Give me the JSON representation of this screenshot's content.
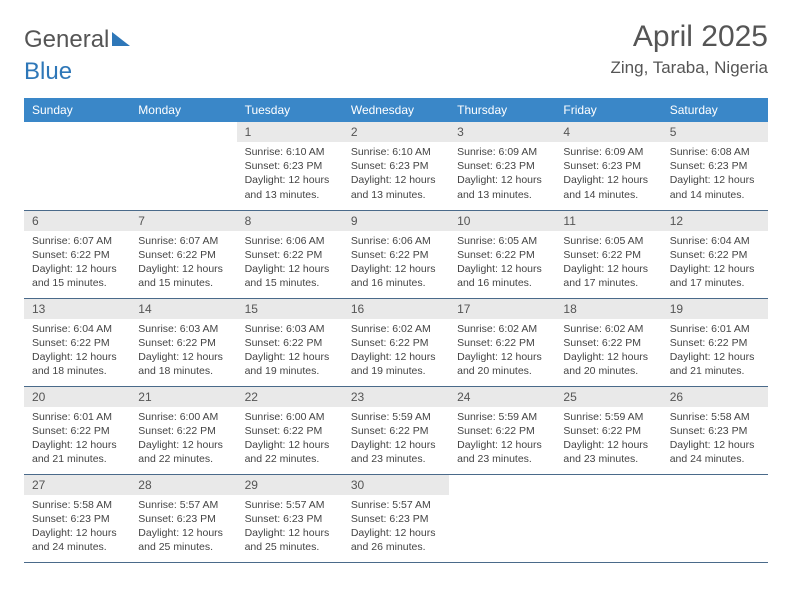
{
  "logo": {
    "part1": "General",
    "part2": "Blue"
  },
  "title": {
    "month": "April 2025",
    "location": "Zing, Taraba, Nigeria"
  },
  "colors": {
    "header_bg": "#3a87c8",
    "daynum_bg": "#e9e9e9",
    "border": "#4a6a8a",
    "text": "#444444",
    "title_text": "#555555"
  },
  "weekdays": [
    "Sunday",
    "Monday",
    "Tuesday",
    "Wednesday",
    "Thursday",
    "Friday",
    "Saturday"
  ],
  "weeks": [
    [
      null,
      null,
      {
        "n": "1",
        "sr": "Sunrise: 6:10 AM",
        "ss": "Sunset: 6:23 PM",
        "dl": "Daylight: 12 hours and 13 minutes."
      },
      {
        "n": "2",
        "sr": "Sunrise: 6:10 AM",
        "ss": "Sunset: 6:23 PM",
        "dl": "Daylight: 12 hours and 13 minutes."
      },
      {
        "n": "3",
        "sr": "Sunrise: 6:09 AM",
        "ss": "Sunset: 6:23 PM",
        "dl": "Daylight: 12 hours and 13 minutes."
      },
      {
        "n": "4",
        "sr": "Sunrise: 6:09 AM",
        "ss": "Sunset: 6:23 PM",
        "dl": "Daylight: 12 hours and 14 minutes."
      },
      {
        "n": "5",
        "sr": "Sunrise: 6:08 AM",
        "ss": "Sunset: 6:23 PM",
        "dl": "Daylight: 12 hours and 14 minutes."
      }
    ],
    [
      {
        "n": "6",
        "sr": "Sunrise: 6:07 AM",
        "ss": "Sunset: 6:22 PM",
        "dl": "Daylight: 12 hours and 15 minutes."
      },
      {
        "n": "7",
        "sr": "Sunrise: 6:07 AM",
        "ss": "Sunset: 6:22 PM",
        "dl": "Daylight: 12 hours and 15 minutes."
      },
      {
        "n": "8",
        "sr": "Sunrise: 6:06 AM",
        "ss": "Sunset: 6:22 PM",
        "dl": "Daylight: 12 hours and 15 minutes."
      },
      {
        "n": "9",
        "sr": "Sunrise: 6:06 AM",
        "ss": "Sunset: 6:22 PM",
        "dl": "Daylight: 12 hours and 16 minutes."
      },
      {
        "n": "10",
        "sr": "Sunrise: 6:05 AM",
        "ss": "Sunset: 6:22 PM",
        "dl": "Daylight: 12 hours and 16 minutes."
      },
      {
        "n": "11",
        "sr": "Sunrise: 6:05 AM",
        "ss": "Sunset: 6:22 PM",
        "dl": "Daylight: 12 hours and 17 minutes."
      },
      {
        "n": "12",
        "sr": "Sunrise: 6:04 AM",
        "ss": "Sunset: 6:22 PM",
        "dl": "Daylight: 12 hours and 17 minutes."
      }
    ],
    [
      {
        "n": "13",
        "sr": "Sunrise: 6:04 AM",
        "ss": "Sunset: 6:22 PM",
        "dl": "Daylight: 12 hours and 18 minutes."
      },
      {
        "n": "14",
        "sr": "Sunrise: 6:03 AM",
        "ss": "Sunset: 6:22 PM",
        "dl": "Daylight: 12 hours and 18 minutes."
      },
      {
        "n": "15",
        "sr": "Sunrise: 6:03 AM",
        "ss": "Sunset: 6:22 PM",
        "dl": "Daylight: 12 hours and 19 minutes."
      },
      {
        "n": "16",
        "sr": "Sunrise: 6:02 AM",
        "ss": "Sunset: 6:22 PM",
        "dl": "Daylight: 12 hours and 19 minutes."
      },
      {
        "n": "17",
        "sr": "Sunrise: 6:02 AM",
        "ss": "Sunset: 6:22 PM",
        "dl": "Daylight: 12 hours and 20 minutes."
      },
      {
        "n": "18",
        "sr": "Sunrise: 6:02 AM",
        "ss": "Sunset: 6:22 PM",
        "dl": "Daylight: 12 hours and 20 minutes."
      },
      {
        "n": "19",
        "sr": "Sunrise: 6:01 AM",
        "ss": "Sunset: 6:22 PM",
        "dl": "Daylight: 12 hours and 21 minutes."
      }
    ],
    [
      {
        "n": "20",
        "sr": "Sunrise: 6:01 AM",
        "ss": "Sunset: 6:22 PM",
        "dl": "Daylight: 12 hours and 21 minutes."
      },
      {
        "n": "21",
        "sr": "Sunrise: 6:00 AM",
        "ss": "Sunset: 6:22 PM",
        "dl": "Daylight: 12 hours and 22 minutes."
      },
      {
        "n": "22",
        "sr": "Sunrise: 6:00 AM",
        "ss": "Sunset: 6:22 PM",
        "dl": "Daylight: 12 hours and 22 minutes."
      },
      {
        "n": "23",
        "sr": "Sunrise: 5:59 AM",
        "ss": "Sunset: 6:22 PM",
        "dl": "Daylight: 12 hours and 23 minutes."
      },
      {
        "n": "24",
        "sr": "Sunrise: 5:59 AM",
        "ss": "Sunset: 6:22 PM",
        "dl": "Daylight: 12 hours and 23 minutes."
      },
      {
        "n": "25",
        "sr": "Sunrise: 5:59 AM",
        "ss": "Sunset: 6:22 PM",
        "dl": "Daylight: 12 hours and 23 minutes."
      },
      {
        "n": "26",
        "sr": "Sunrise: 5:58 AM",
        "ss": "Sunset: 6:23 PM",
        "dl": "Daylight: 12 hours and 24 minutes."
      }
    ],
    [
      {
        "n": "27",
        "sr": "Sunrise: 5:58 AM",
        "ss": "Sunset: 6:23 PM",
        "dl": "Daylight: 12 hours and 24 minutes."
      },
      {
        "n": "28",
        "sr": "Sunrise: 5:57 AM",
        "ss": "Sunset: 6:23 PM",
        "dl": "Daylight: 12 hours and 25 minutes."
      },
      {
        "n": "29",
        "sr": "Sunrise: 5:57 AM",
        "ss": "Sunset: 6:23 PM",
        "dl": "Daylight: 12 hours and 25 minutes."
      },
      {
        "n": "30",
        "sr": "Sunrise: 5:57 AM",
        "ss": "Sunset: 6:23 PM",
        "dl": "Daylight: 12 hours and 26 minutes."
      },
      null,
      null,
      null
    ]
  ]
}
